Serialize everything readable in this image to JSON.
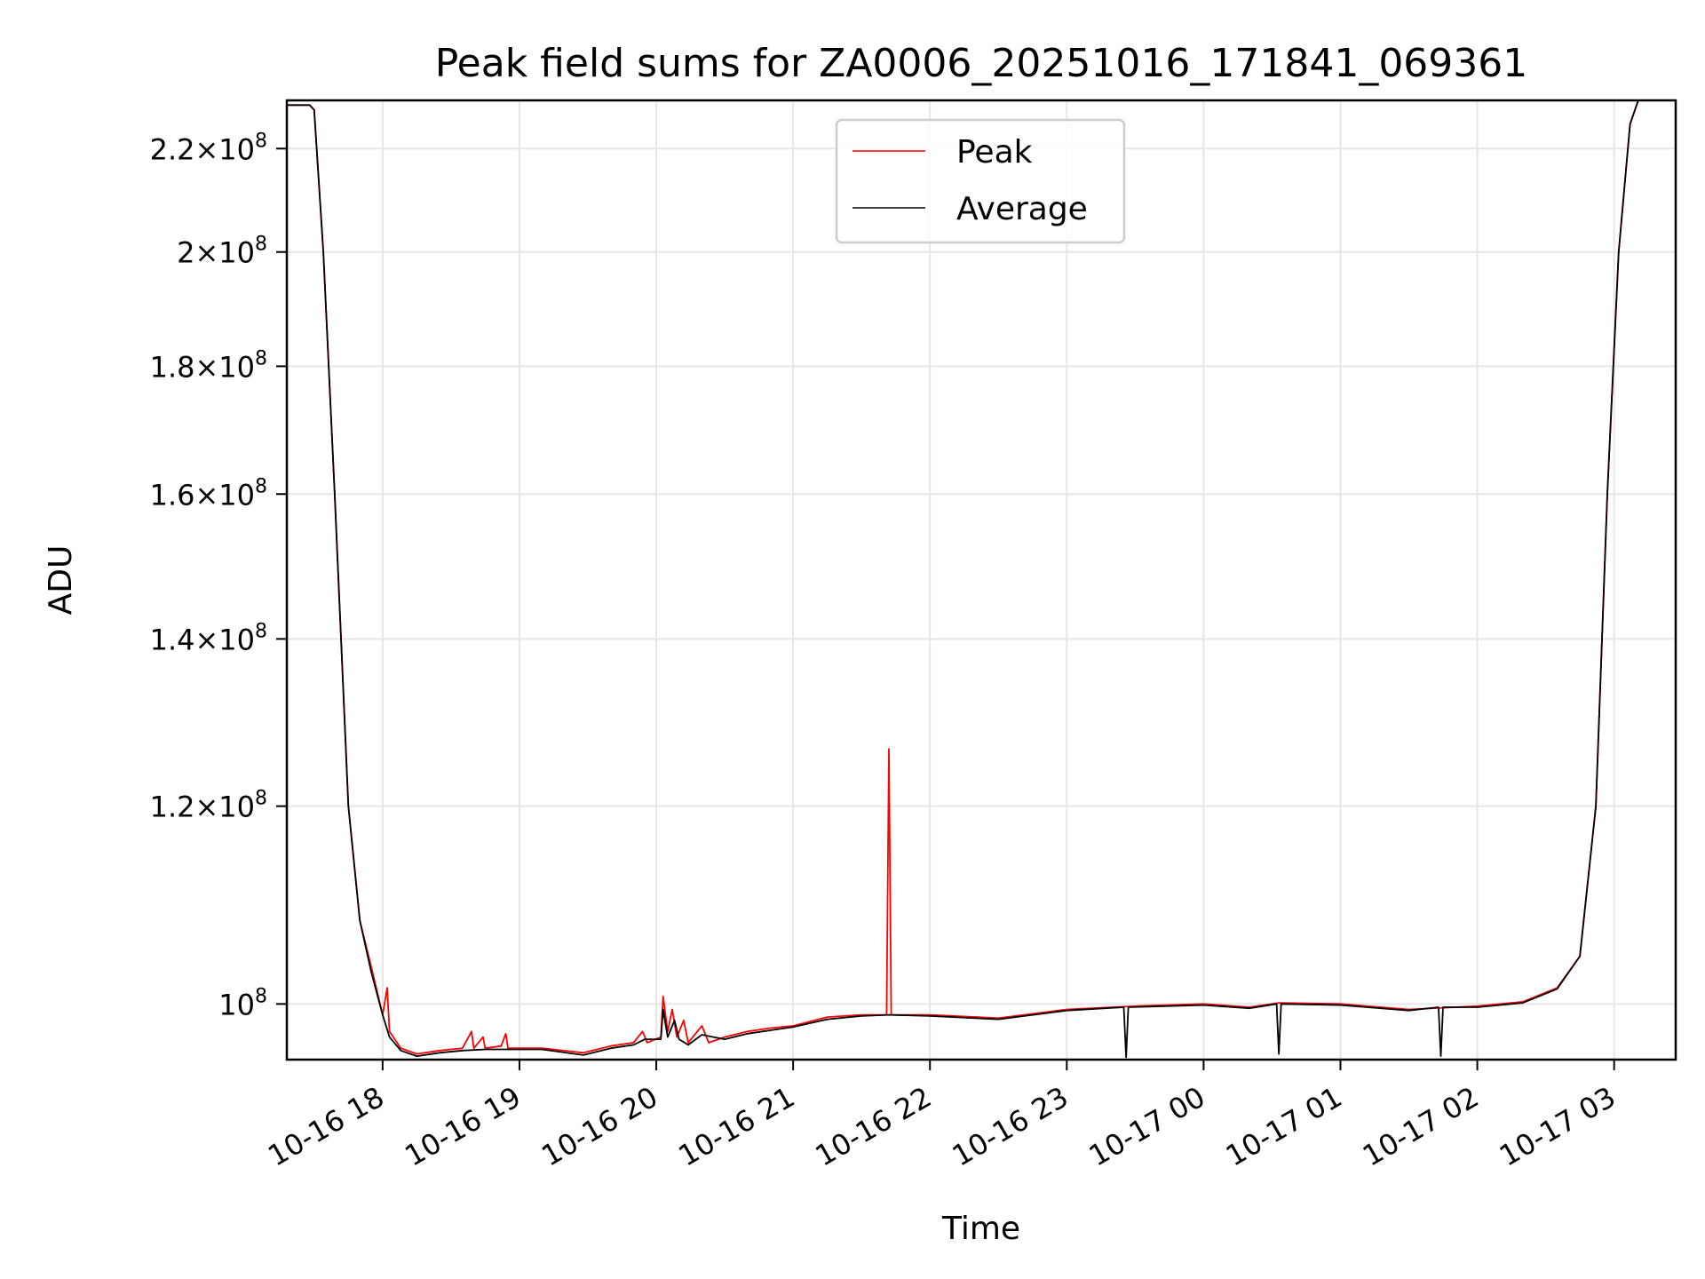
{
  "chart_data": {
    "type": "line",
    "title": "Peak field sums for ZA0006_20251016_171841_069361",
    "xlabel": "Time",
    "ylabel": "ADU",
    "x_axis": {
      "scale": "time",
      "range": [
        "2025-10-16T17:18:00",
        "2025-10-17T03:27:00"
      ],
      "tick_values": [
        "2025-10-16T18:00",
        "2025-10-16T19:00",
        "2025-10-16T20:00",
        "2025-10-16T21:00",
        "2025-10-16T22:00",
        "2025-10-16T23:00",
        "2025-10-17T00:00",
        "2025-10-17T01:00",
        "2025-10-17T02:00",
        "2025-10-17T03:00"
      ],
      "tick_labels": [
        "10-16 18",
        "10-16 19",
        "10-16 20",
        "10-16 21",
        "10-16 22",
        "10-16 23",
        "10-17 00",
        "10-17 01",
        "10-17 02",
        "10-17 03"
      ]
    },
    "y_axis": {
      "scale": "log",
      "range": [
        95000000,
        230000000
      ],
      "ticks": [
        {
          "value": 100000000,
          "mantissa": "",
          "exp": "8"
        },
        {
          "value": 120000000,
          "mantissa": "1.2",
          "exp": "8"
        },
        {
          "value": 140000000,
          "mantissa": "1.4",
          "exp": "8"
        },
        {
          "value": 160000000,
          "mantissa": "1.6",
          "exp": "8"
        },
        {
          "value": 180000000,
          "mantissa": "1.8",
          "exp": "8"
        },
        {
          "value": 200000000,
          "mantissa": "2",
          "exp": "8"
        },
        {
          "value": 220000000,
          "mantissa": "2.2",
          "exp": "8"
        }
      ]
    },
    "grid": true,
    "legend": {
      "placement": "upper-center"
    },
    "series": [
      {
        "name": "Peak",
        "color": "#ff0000",
        "points": [
          [
            "2025-10-16T17:18:00",
            229000000
          ],
          [
            "2025-10-16T17:28:00",
            229000000
          ],
          [
            "2025-10-16T17:30:00",
            228000000
          ],
          [
            "2025-10-16T17:34:00",
            200000000
          ],
          [
            "2025-10-16T17:39:00",
            160000000
          ],
          [
            "2025-10-16T17:45:00",
            120000000
          ],
          [
            "2025-10-16T17:50:00",
            108000000
          ],
          [
            "2025-10-16T17:55:00",
            103500000
          ],
          [
            "2025-10-16T18:00:00",
            99000000
          ],
          [
            "2025-10-16T18:02:00",
            101500000
          ],
          [
            "2025-10-16T18:03:00",
            97500000
          ],
          [
            "2025-10-16T18:08:00",
            96000000
          ],
          [
            "2025-10-16T18:15:00",
            95500000
          ],
          [
            "2025-10-16T18:25:00",
            95800000
          ],
          [
            "2025-10-16T18:35:00",
            96000000
          ],
          [
            "2025-10-16T18:39:00",
            97500000
          ],
          [
            "2025-10-16T18:40:00",
            96000000
          ],
          [
            "2025-10-16T18:44:00",
            97000000
          ],
          [
            "2025-10-16T18:45:00",
            96000000
          ],
          [
            "2025-10-16T18:52:00",
            96200000
          ],
          [
            "2025-10-16T18:54:00",
            97300000
          ],
          [
            "2025-10-16T18:55:00",
            96000000
          ],
          [
            "2025-10-16T19:10:00",
            96000000
          ],
          [
            "2025-10-16T19:28:00",
            95600000
          ],
          [
            "2025-10-16T19:40:00",
            96200000
          ],
          [
            "2025-10-16T19:50:00",
            96500000
          ],
          [
            "2025-10-16T19:54:00",
            97500000
          ],
          [
            "2025-10-16T19:56:00",
            96500000
          ],
          [
            "2025-10-16T20:02:00",
            97000000
          ],
          [
            "2025-10-16T20:03:00",
            100700000
          ],
          [
            "2025-10-16T20:05:00",
            97500000
          ],
          [
            "2025-10-16T20:07:00",
            99500000
          ],
          [
            "2025-10-16T20:09:00",
            97000000
          ],
          [
            "2025-10-16T20:12:00",
            98500000
          ],
          [
            "2025-10-16T20:14:00",
            96500000
          ],
          [
            "2025-10-16T20:20:00",
            98000000
          ],
          [
            "2025-10-16T20:23:00",
            96500000
          ],
          [
            "2025-10-16T20:30:00",
            97000000
          ],
          [
            "2025-10-16T20:40:00",
            97500000
          ],
          [
            "2025-10-16T20:50:00",
            97800000
          ],
          [
            "2025-10-16T21:00:00",
            98000000
          ],
          [
            "2025-10-16T21:15:00",
            98800000
          ],
          [
            "2025-10-16T21:30:00",
            99000000
          ],
          [
            "2025-10-16T21:41:00",
            99000000
          ],
          [
            "2025-10-16T21:42:00",
            126500000
          ],
          [
            "2025-10-16T21:43:00",
            99000000
          ],
          [
            "2025-10-16T22:00:00",
            99000000
          ],
          [
            "2025-10-16T22:30:00",
            98700000
          ],
          [
            "2025-10-16T23:00:00",
            99500000
          ],
          [
            "2025-10-16T23:30:00",
            99800000
          ],
          [
            "2025-10-17T00:00:00",
            100000000
          ],
          [
            "2025-10-17T00:20:00",
            99700000
          ],
          [
            "2025-10-17T00:33:00",
            100100000
          ],
          [
            "2025-10-17T01:00:00",
            100000000
          ],
          [
            "2025-10-17T01:30:00",
            99500000
          ],
          [
            "2025-10-17T02:00:00",
            99800000
          ],
          [
            "2025-10-17T02:20:00",
            100200000
          ],
          [
            "2025-10-17T02:35:00",
            101500000
          ],
          [
            "2025-10-17T02:45:00",
            104500000
          ],
          [
            "2025-10-17T02:52:00",
            120000000
          ],
          [
            "2025-10-17T02:57:00",
            160000000
          ],
          [
            "2025-10-17T03:02:00",
            200000000
          ],
          [
            "2025-10-17T03:07:00",
            225000000
          ],
          [
            "2025-10-17T03:12:00",
            232000000
          ]
        ]
      },
      {
        "name": "Average",
        "color": "#000000",
        "points": [
          [
            "2025-10-16T17:18:00",
            229000000
          ],
          [
            "2025-10-16T17:28:00",
            229000000
          ],
          [
            "2025-10-16T17:30:00",
            228000000
          ],
          [
            "2025-10-16T17:34:00",
            200000000
          ],
          [
            "2025-10-16T17:39:00",
            160000000
          ],
          [
            "2025-10-16T17:45:00",
            120000000
          ],
          [
            "2025-10-16T17:50:00",
            108000000
          ],
          [
            "2025-10-16T17:55:00",
            103000000
          ],
          [
            "2025-10-16T18:00:00",
            99000000
          ],
          [
            "2025-10-16T18:03:00",
            97000000
          ],
          [
            "2025-10-16T18:08:00",
            95800000
          ],
          [
            "2025-10-16T18:15:00",
            95300000
          ],
          [
            "2025-10-16T18:25:00",
            95600000
          ],
          [
            "2025-10-16T18:35:00",
            95800000
          ],
          [
            "2025-10-16T18:45:00",
            95900000
          ],
          [
            "2025-10-16T18:55:00",
            95900000
          ],
          [
            "2025-10-16T19:10:00",
            95900000
          ],
          [
            "2025-10-16T19:28:00",
            95400000
          ],
          [
            "2025-10-16T19:40:00",
            96000000
          ],
          [
            "2025-10-16T19:50:00",
            96300000
          ],
          [
            "2025-10-16T19:55:00",
            96800000
          ],
          [
            "2025-10-16T20:02:00",
            96800000
          ],
          [
            "2025-10-16T20:03:00",
            99500000
          ],
          [
            "2025-10-16T20:05:00",
            97000000
          ],
          [
            "2025-10-16T20:08:00",
            98500000
          ],
          [
            "2025-10-16T20:10:00",
            96800000
          ],
          [
            "2025-10-16T20:14:00",
            96300000
          ],
          [
            "2025-10-16T20:20:00",
            97200000
          ],
          [
            "2025-10-16T20:30:00",
            96800000
          ],
          [
            "2025-10-16T20:40:00",
            97300000
          ],
          [
            "2025-10-16T20:50:00",
            97600000
          ],
          [
            "2025-10-16T21:00:00",
            97900000
          ],
          [
            "2025-10-16T21:15:00",
            98600000
          ],
          [
            "2025-10-16T21:30:00",
            98900000
          ],
          [
            "2025-10-16T21:42:00",
            99000000
          ],
          [
            "2025-10-16T22:00:00",
            98900000
          ],
          [
            "2025-10-16T22:30:00",
            98600000
          ],
          [
            "2025-10-16T23:00:00",
            99400000
          ],
          [
            "2025-10-16T23:25:00",
            99700000
          ],
          [
            "2025-10-16T23:26:00",
            95200000
          ],
          [
            "2025-10-16T23:27:00",
            99700000
          ],
          [
            "2025-10-17T00:00:00",
            99900000
          ],
          [
            "2025-10-17T00:20:00",
            99600000
          ],
          [
            "2025-10-17T00:32:00",
            100000000
          ],
          [
            "2025-10-17T00:33:00",
            95500000
          ],
          [
            "2025-10-17T00:34:00",
            100000000
          ],
          [
            "2025-10-17T01:00:00",
            99900000
          ],
          [
            "2025-10-17T01:30:00",
            99400000
          ],
          [
            "2025-10-17T01:43:00",
            99700000
          ],
          [
            "2025-10-17T01:44:00",
            95300000
          ],
          [
            "2025-10-17T01:45:00",
            99700000
          ],
          [
            "2025-10-17T02:00:00",
            99700000
          ],
          [
            "2025-10-17T02:20:00",
            100100000
          ],
          [
            "2025-10-17T02:35:00",
            101400000
          ],
          [
            "2025-10-17T02:45:00",
            104500000
          ],
          [
            "2025-10-17T02:52:00",
            120000000
          ],
          [
            "2025-10-17T02:57:00",
            160000000
          ],
          [
            "2025-10-17T03:02:00",
            200000000
          ],
          [
            "2025-10-17T03:07:00",
            225000000
          ],
          [
            "2025-10-17T03:12:00",
            232000000
          ]
        ]
      }
    ]
  }
}
